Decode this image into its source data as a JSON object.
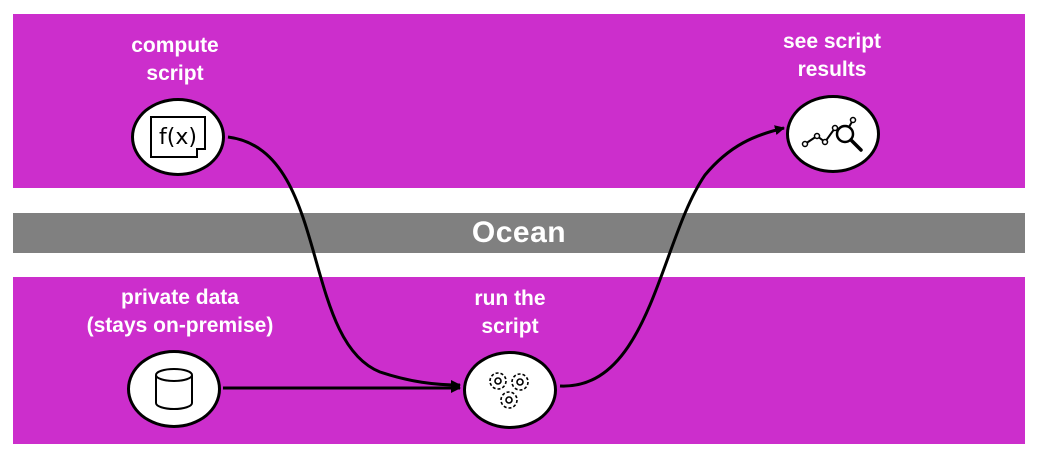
{
  "colors": {
    "band": "#cc2ecc",
    "ocean_band": "#808080",
    "text_on_band": "#ffffff",
    "line": "#000000"
  },
  "ocean": {
    "label": "Ocean"
  },
  "nodes": {
    "compute_script": {
      "label": "compute\nscript",
      "icon": "function-document-icon",
      "icon_text": "f(x)"
    },
    "see_results": {
      "label": "see script\nresults",
      "icon": "chart-magnifier-icon"
    },
    "private_data": {
      "label": "private data\n(stays on-premise)",
      "icon": "database-icon"
    },
    "run_script": {
      "label": "run the\nscript",
      "icon": "gears-icon"
    }
  },
  "edges": [
    {
      "from": "compute_script",
      "to": "run_script"
    },
    {
      "from": "private_data",
      "to": "run_script"
    },
    {
      "from": "run_script",
      "to": "see_results"
    }
  ]
}
